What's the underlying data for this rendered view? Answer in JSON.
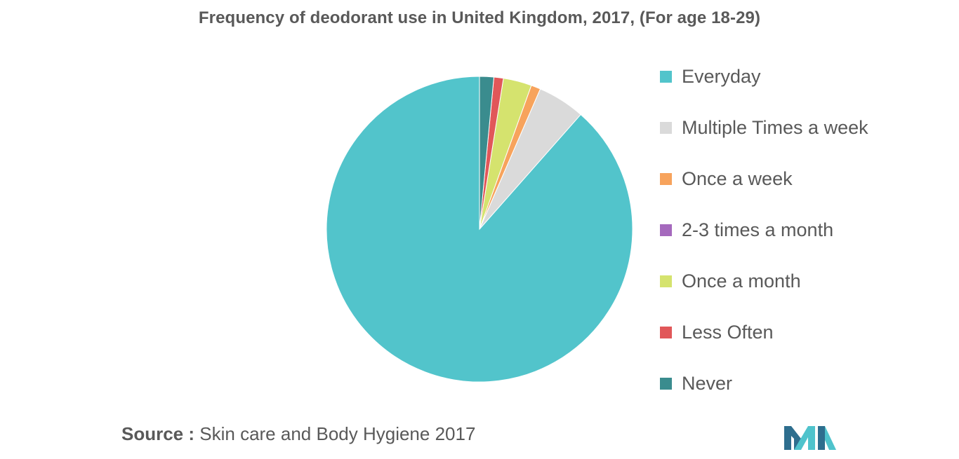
{
  "chart_data": {
    "type": "pie",
    "title": "Frequency of deodorant use in United Kingdom, 2017, (For age 18-29)",
    "categories": [
      "Everyday",
      "Multiple Times a week",
      "Once a week",
      "2-3 times a month",
      "Once a month",
      "Less Often",
      "Never"
    ],
    "values": [
      88.5,
      5,
      1,
      0,
      3,
      1,
      1.5
    ],
    "colors": [
      "#52C4CB",
      "#DADADA",
      "#F7A35C",
      "#A569BD",
      "#D5E36E",
      "#E15759",
      "#3A8C8E"
    ],
    "legend_position": "right"
  },
  "source": {
    "label": "Source :",
    "text": "Skin care and Body Hygiene 2017"
  },
  "logo": {
    "icon": "mordor-intelligence-logo",
    "colors": [
      "#2E6E8E",
      "#4FC3CC"
    ]
  }
}
